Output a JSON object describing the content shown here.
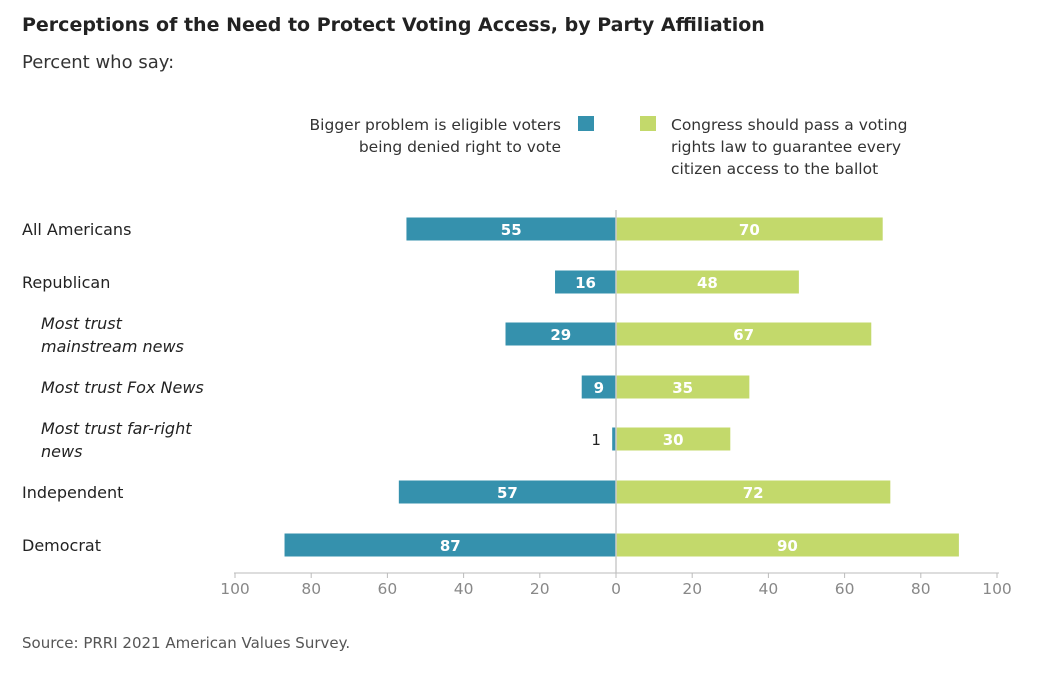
{
  "title": "Perceptions of the Need to Protect Voting Access, by Party Affiliation",
  "subtitle": "Percent who say:",
  "source": "PRRI 2021 American Values Survey.",
  "colors": {
    "left_series": "#3591ad",
    "right_series": "#c3d96b",
    "axis": "#bbbbbb",
    "center_line": "#cccccc",
    "tick_text": "#888888"
  },
  "chart_data": {
    "type": "bar",
    "orientation": "horizontal-diverging",
    "categories": [
      {
        "label_lines": [
          "All Americans"
        ],
        "italic": false
      },
      {
        "label_lines": [
          "Republican"
        ],
        "italic": false
      },
      {
        "label_lines": [
          "Most trust",
          "mainstream news"
        ],
        "italic": true
      },
      {
        "label_lines": [
          "Most trust Fox News"
        ],
        "italic": true
      },
      {
        "label_lines": [
          "Most trust far-right",
          "news"
        ],
        "italic": true
      },
      {
        "label_lines": [
          "Independent"
        ],
        "italic": false
      },
      {
        "label_lines": [
          "Democrat"
        ],
        "italic": false
      }
    ],
    "series": [
      {
        "name_lines": [
          "Bigger problem is eligible voters",
          "being denied right to vote"
        ],
        "direction": "left",
        "values": [
          55,
          16,
          29,
          9,
          1,
          57,
          87
        ]
      },
      {
        "name_lines": [
          "Congress should pass a voting",
          "rights law to guarantee every",
          "citizen access to the ballot"
        ],
        "direction": "right",
        "values": [
          70,
          48,
          67,
          35,
          30,
          72,
          90
        ]
      }
    ],
    "xlim": [
      -100,
      100
    ],
    "xticks": [
      "100",
      "80",
      "60",
      "40",
      "20",
      "0",
      "20",
      "40",
      "60",
      "80",
      "100"
    ],
    "legend_position": "top",
    "grid": false
  }
}
